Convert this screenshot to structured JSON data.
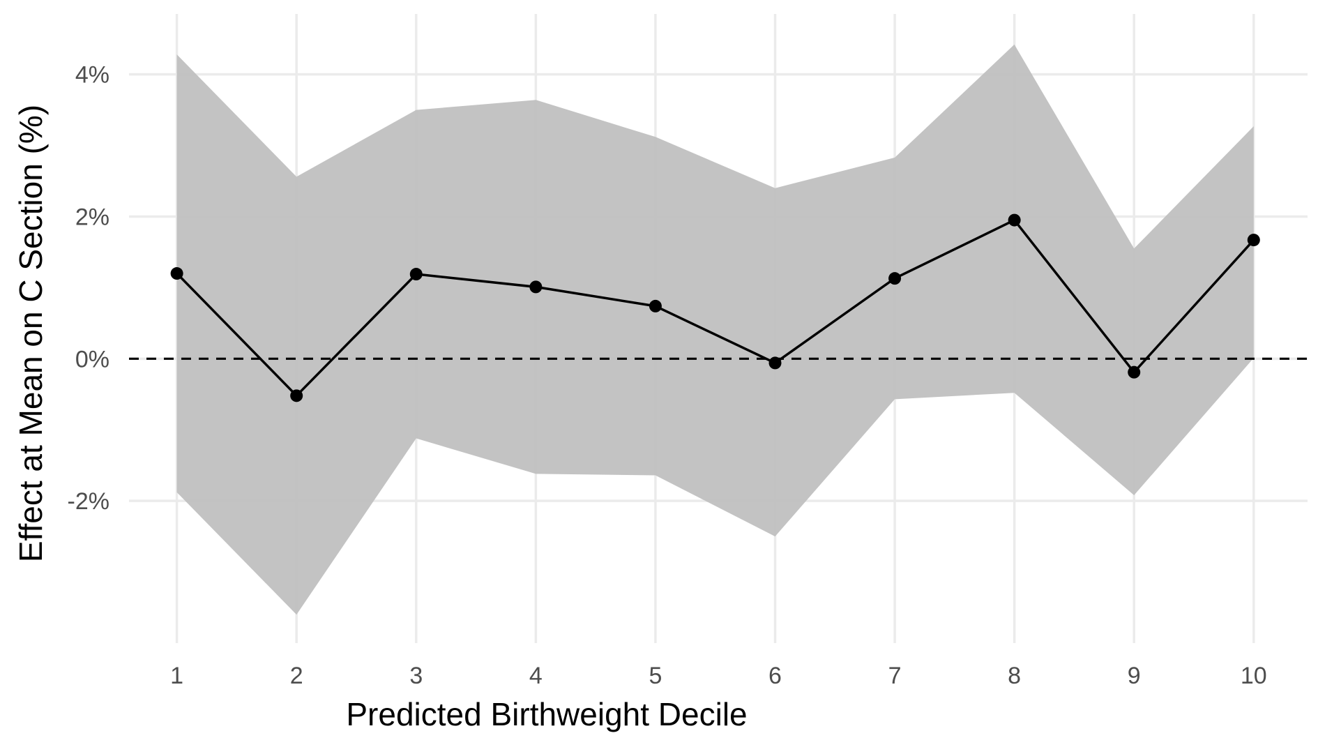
{
  "chart_data": {
    "type": "line",
    "xlabel": "Predicted Birthweight Decile",
    "ylabel": "Effect at Mean on C Section (%)",
    "x": [
      1,
      2,
      3,
      4,
      5,
      6,
      7,
      8,
      9,
      10
    ],
    "x_tick_labels": [
      "1",
      "2",
      "3",
      "4",
      "5",
      "6",
      "7",
      "8",
      "9",
      "10"
    ],
    "xlim": [
      0.6,
      10.45
    ],
    "y_ticks": [
      -2,
      0,
      2,
      4
    ],
    "y_tick_labels": [
      "-2%",
      "0%",
      "2%",
      "4%"
    ],
    "ylim": [
      -4.0,
      4.85
    ],
    "series": [
      {
        "values": [
          1.2,
          -0.52,
          1.19,
          1.01,
          0.74,
          -0.06,
          1.13,
          1.95,
          -0.19,
          1.67
        ],
        "ci_lower": [
          -1.88,
          -3.6,
          -1.12,
          -1.62,
          -1.64,
          -2.5,
          -0.57,
          -0.48,
          -1.92,
          0.01
        ],
        "ci_upper": [
          4.28,
          2.56,
          3.5,
          3.64,
          3.12,
          2.4,
          2.83,
          4.42,
          1.55,
          3.27
        ],
        "line_color": "#000000",
        "ribbon_color": "#bebebe"
      }
    ],
    "reference_line": {
      "y": 0,
      "style": "dashed",
      "color": "#000000"
    },
    "grid": true,
    "legend": "none",
    "background": "#ffffff"
  }
}
